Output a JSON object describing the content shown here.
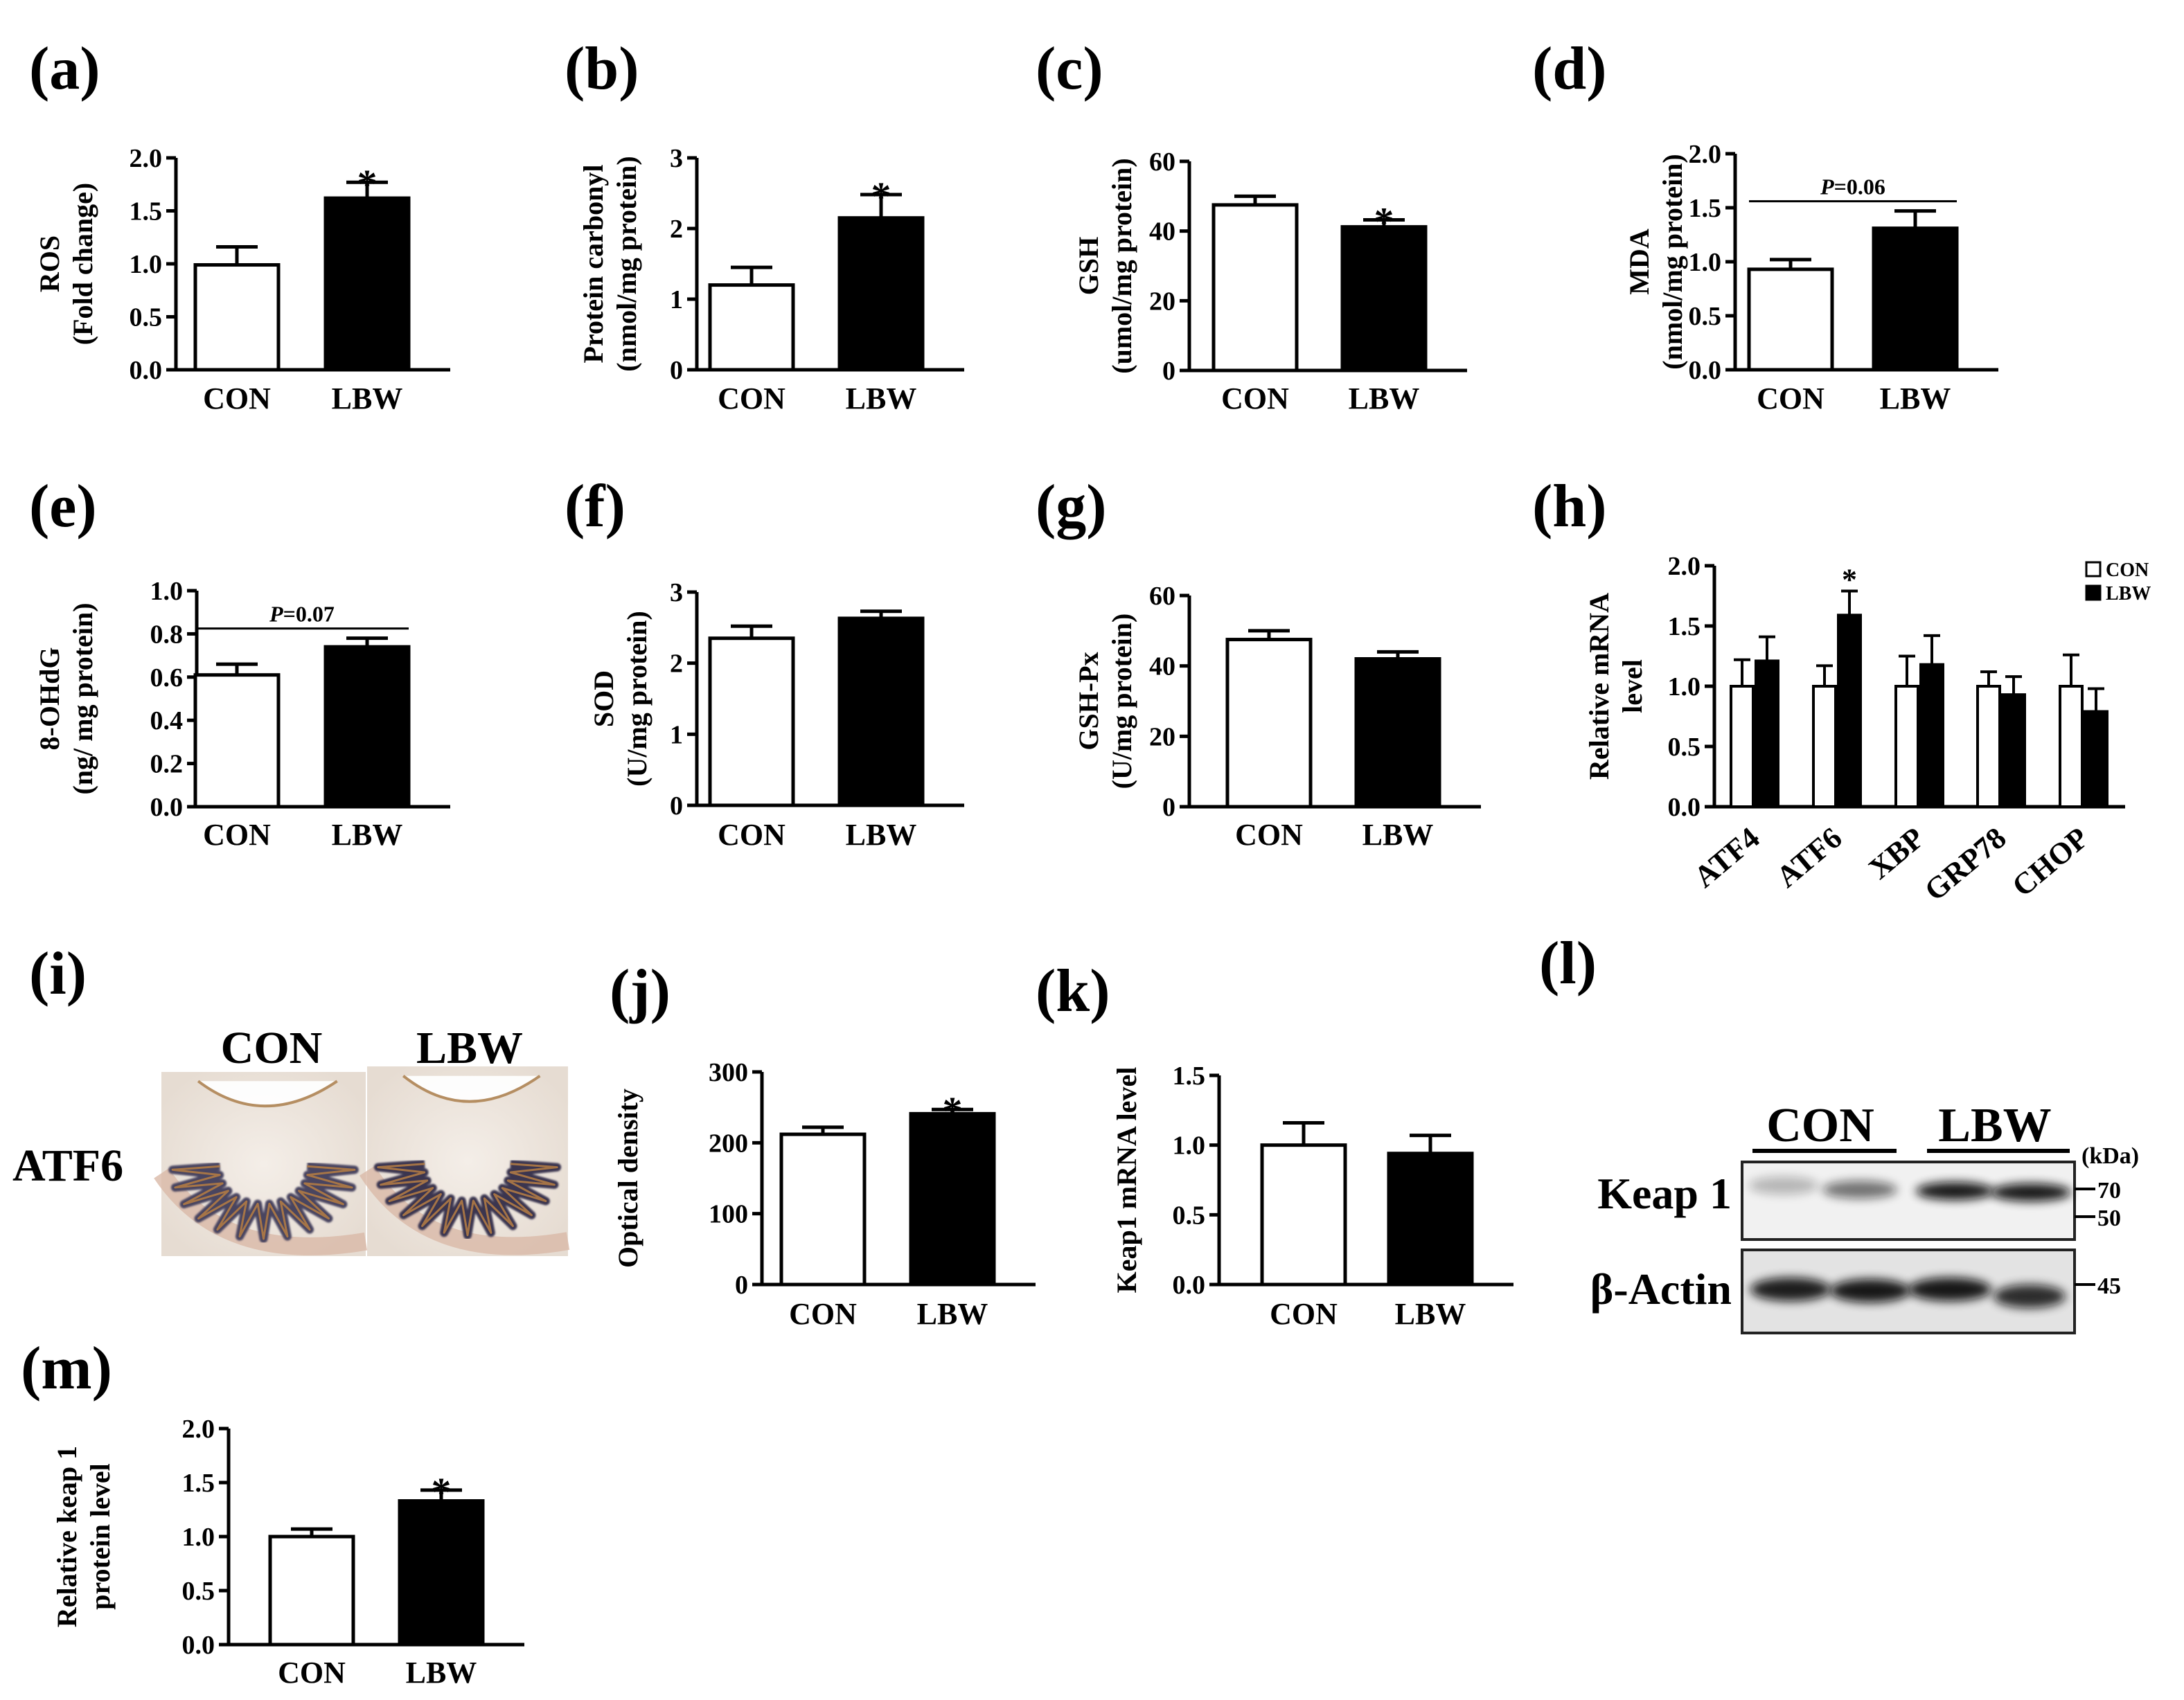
{
  "chart_data": [
    {
      "id": "a",
      "type": "bar",
      "panel_label": "(a)",
      "categories": [
        "CON",
        "LBW"
      ],
      "values": [
        0.99,
        1.62
      ],
      "errors": [
        0.17,
        0.15
      ],
      "ylabel": [
        "ROS",
        "(Fold change)"
      ],
      "ylim": [
        0,
        2.0
      ],
      "yticks": [
        "0.0",
        "0.5",
        "1.0",
        "1.5",
        "2.0"
      ],
      "annotations": [
        {
          "type": "star",
          "text": "*",
          "index": 1
        }
      ],
      "colors": [
        "#ffffff",
        "#000000"
      ]
    },
    {
      "id": "b",
      "type": "bar",
      "panel_label": "(b)",
      "categories": [
        "CON",
        "LBW"
      ],
      "values": [
        1.2,
        2.15
      ],
      "errors": [
        0.25,
        0.33
      ],
      "ylabel": [
        "Protein carbonyl",
        "(nmol/mg protein)"
      ],
      "ylim": [
        0,
        3
      ],
      "yticks": [
        "0",
        "1",
        "2",
        "3"
      ],
      "annotations": [
        {
          "type": "star",
          "text": "*",
          "index": 1
        }
      ],
      "colors": [
        "#ffffff",
        "#000000"
      ]
    },
    {
      "id": "c",
      "type": "bar",
      "panel_label": "(c)",
      "categories": [
        "CON",
        "LBW"
      ],
      "values": [
        47.5,
        41.2
      ],
      "errors": [
        2.5,
        2.0
      ],
      "ylabel": [
        "GSH",
        "(umol/mg protein)"
      ],
      "ylim": [
        0,
        60
      ],
      "yticks": [
        "0",
        "20",
        "40",
        "60"
      ],
      "annotations": [
        {
          "type": "star",
          "text": "*",
          "index": 1
        }
      ],
      "colors": [
        "#ffffff",
        "#000000"
      ]
    },
    {
      "id": "d",
      "type": "bar",
      "panel_label": "(d)",
      "categories": [
        "CON",
        "LBW"
      ],
      "values": [
        0.93,
        1.31
      ],
      "errors": [
        0.09,
        0.16
      ],
      "ylabel": [
        "MDA",
        "(nmol/mg protein)"
      ],
      "ylim": [
        0,
        2.0
      ],
      "yticks": [
        "0.0",
        "0.5",
        "1.0",
        "1.5",
        "2.0"
      ],
      "annotations": [
        {
          "type": "pvalue",
          "p_label": "P",
          "p_value": "=0.06"
        }
      ],
      "colors": [
        "#ffffff",
        "#000000"
      ]
    },
    {
      "id": "e",
      "type": "bar",
      "panel_label": "(e)",
      "categories": [
        "CON",
        "LBW"
      ],
      "values": [
        0.61,
        0.74
      ],
      "errors": [
        0.05,
        0.04
      ],
      "ylabel": [
        "8-OHdG",
        "(ng/ mg protein)"
      ],
      "ylim": [
        0,
        1.0
      ],
      "yticks": [
        "0.0",
        "0.2",
        "0.4",
        "0.6",
        "0.8",
        "1.0"
      ],
      "annotations": [
        {
          "type": "pvalue",
          "p_label": "P",
          "p_value": "=0.07"
        }
      ],
      "colors": [
        "#ffffff",
        "#000000"
      ]
    },
    {
      "id": "f",
      "type": "bar",
      "panel_label": "(f)",
      "categories": [
        "CON",
        "LBW"
      ],
      "values": [
        2.35,
        2.63
      ],
      "errors": [
        0.17,
        0.1
      ],
      "ylabel": [
        "SOD",
        "(U/mg protein)"
      ],
      "ylim": [
        0,
        3
      ],
      "yticks": [
        "0",
        "1",
        "2",
        "3"
      ],
      "annotations": [],
      "colors": [
        "#ffffff",
        "#000000"
      ]
    },
    {
      "id": "g",
      "type": "bar",
      "panel_label": "(g)",
      "categories": [
        "CON",
        "LBW"
      ],
      "values": [
        47.5,
        42.0
      ],
      "errors": [
        2.5,
        2.0
      ],
      "ylabel": [
        "GSH-Px",
        "(U/mg protein)"
      ],
      "ylim": [
        0,
        60
      ],
      "yticks": [
        "0",
        "20",
        "40",
        "60"
      ],
      "annotations": [],
      "colors": [
        "#ffffff",
        "#000000"
      ]
    },
    {
      "id": "h",
      "type": "bar",
      "panel_label": "(h)",
      "categories": [
        "ATF4",
        "ATF6",
        "XBP",
        "GRP78",
        "CHOP"
      ],
      "series": [
        {
          "name": "CON",
          "values": [
            1.0,
            1.0,
            1.0,
            1.0,
            1.0
          ],
          "errors": [
            0.22,
            0.17,
            0.25,
            0.12,
            0.26
          ],
          "color": "#ffffff"
        },
        {
          "name": "LBW",
          "values": [
            1.21,
            1.59,
            1.18,
            0.93,
            0.79
          ],
          "errors": [
            0.2,
            0.2,
            0.24,
            0.15,
            0.19
          ],
          "color": "#000000"
        }
      ],
      "ylabel": [
        "Relative mRNA",
        "level"
      ],
      "ylim": [
        0,
        2.0
      ],
      "yticks": [
        "0.0",
        "0.5",
        "1.0",
        "1.5",
        "2.0"
      ],
      "annotations": [
        {
          "type": "star",
          "text": "*",
          "index": 1
        }
      ],
      "legend_position": "top-right"
    },
    {
      "id": "j",
      "type": "bar",
      "panel_label": "(j)",
      "categories": [
        "CON",
        "LBW"
      ],
      "values": [
        212,
        241
      ],
      "errors": [
        10,
        6
      ],
      "ylabel": [
        "Optical density"
      ],
      "ylim": [
        0,
        300
      ],
      "yticks": [
        "0",
        "100",
        "200",
        "300"
      ],
      "annotations": [
        {
          "type": "star",
          "text": "*",
          "index": 1
        }
      ],
      "colors": [
        "#ffffff",
        "#000000"
      ]
    },
    {
      "id": "k",
      "type": "bar",
      "panel_label": "(k)",
      "categories": [
        "CON",
        "LBW"
      ],
      "values": [
        1.0,
        0.94
      ],
      "errors": [
        0.16,
        0.13
      ],
      "ylabel": [
        "Keap1 mRNA level"
      ],
      "ylim": [
        0,
        1.5
      ],
      "yticks": [
        "0.0",
        "0.5",
        "1.0",
        "1.5"
      ],
      "annotations": [],
      "colors": [
        "#ffffff",
        "#000000"
      ]
    },
    {
      "id": "m",
      "type": "bar",
      "panel_label": "(m)",
      "categories": [
        "CON",
        "LBW"
      ],
      "values": [
        1.0,
        1.33
      ],
      "errors": [
        0.07,
        0.1
      ],
      "ylabel": [
        "Relative keap 1",
        "protein level"
      ],
      "ylim": [
        0,
        2.0
      ],
      "yticks": [
        "0.0",
        "0.5",
        "1.0",
        "1.5",
        "2.0"
      ],
      "annotations": [
        {
          "type": "star",
          "text": "*",
          "index": 1
        }
      ],
      "colors": [
        "#ffffff",
        "#000000"
      ]
    }
  ],
  "histology": {
    "panel_label": "(i)",
    "row_label": "ATF6",
    "col_labels": [
      "CON",
      "LBW"
    ]
  },
  "western_blot": {
    "panel_label": "(l)",
    "groups": [
      "CON",
      "LBW"
    ],
    "unit_label": "(kDa)",
    "rows": [
      {
        "label": "Keap 1",
        "markers": [
          "70",
          "50"
        ]
      },
      {
        "label": "β-Actin",
        "markers": [
          "45"
        ]
      }
    ]
  }
}
